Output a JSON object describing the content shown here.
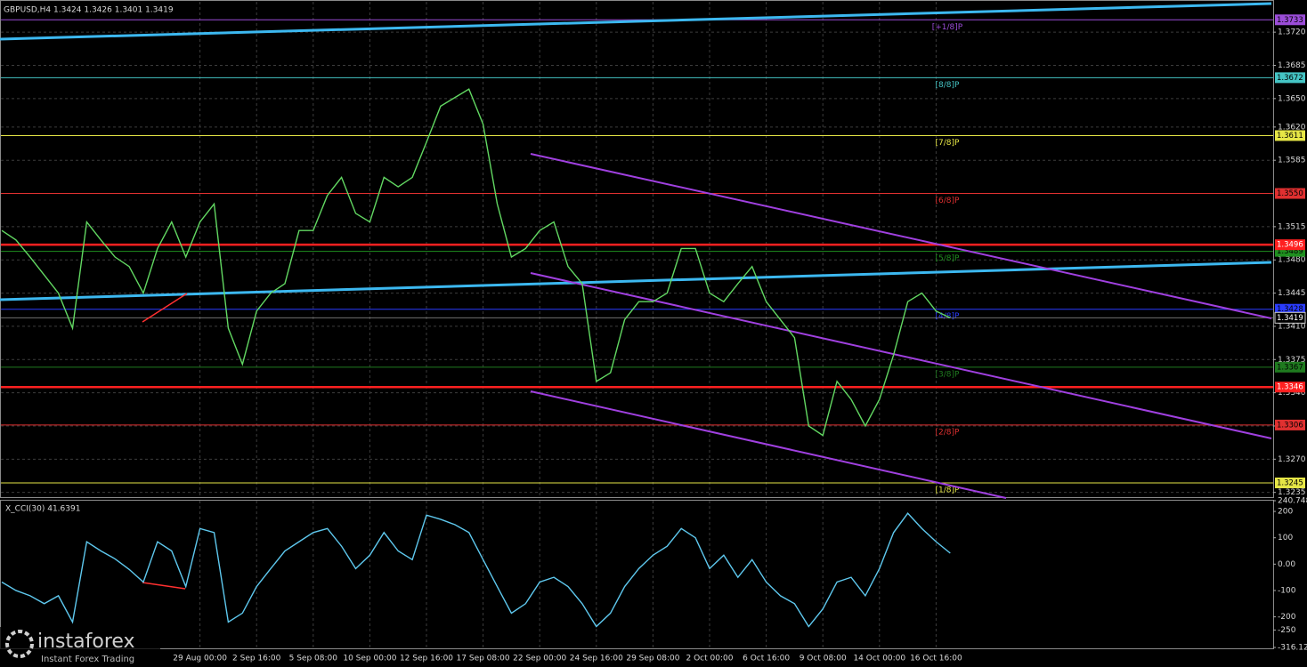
{
  "chart_data": [
    {
      "type": "line",
      "title": "GBPUSD,H4  1.3424 1.3426 1.3401 1.3419",
      "color": "#62d862",
      "values": [
        1.3511,
        1.3501,
        1.3483,
        1.3464,
        1.3445,
        1.3408,
        1.352,
        1.3501,
        1.3483,
        1.3473,
        1.3445,
        1.3492,
        1.352,
        1.3483,
        1.352,
        1.3539,
        1.3408,
        1.337,
        1.3426,
        1.3445,
        1.3455,
        1.3511,
        1.3511,
        1.3548,
        1.3567,
        1.3529,
        1.352,
        1.3567,
        1.3557,
        1.3567,
        1.3604,
        1.3642,
        1.3651,
        1.366,
        1.3623,
        1.3539,
        1.3483,
        1.3492,
        1.3511,
        1.352,
        1.3473,
        1.3455,
        1.3352,
        1.3361,
        1.3417,
        1.3436,
        1.3436,
        1.3445,
        1.3492,
        1.3492,
        1.3445,
        1.3436,
        1.3455,
        1.3473,
        1.3436,
        1.3417,
        1.3398,
        1.3305,
        1.3295,
        1.3352,
        1.3333,
        1.3305,
        1.3333,
        1.338,
        1.3436,
        1.3445,
        1.3426,
        1.3419
      ],
      "ylim": [
        1.323,
        1.3752
      ],
      "yticks": [
        {
          "value": 1.372,
          "label": "1.3720"
        },
        1.3685,
        {
          "value": 1.365,
          "label": "1.3650"
        },
        {
          "value": 1.362,
          "label": "1.3620"
        },
        1.3585,
        1.3515,
        {
          "value": 1.348,
          "label": "1.3480"
        },
        1.3445,
        {
          "value": 1.341,
          "label": "1.3410"
        },
        1.3375,
        {
          "value": 1.334,
          "label": "1.3340"
        },
        1.3305,
        {
          "value": 1.327,
          "label": "1.3270"
        },
        1.3235
      ],
      "grid": true,
      "levels": [
        {
          "label": "[+1/8]P",
          "value": 1.3733,
          "color": "#9b4dd8"
        },
        {
          "label": "[8/8]P",
          "value": 1.3672,
          "color": "#45c4c4"
        },
        {
          "label": "[7/8]P",
          "value": 1.3611,
          "color": "#e6e646"
        },
        {
          "label": "[6/8]P",
          "value": 1.355,
          "price_label": "1.3550",
          "color": "#e03030"
        },
        {
          "label": "[5/8]P",
          "value": 1.3489,
          "color": "#1f8f1f"
        },
        {
          "label": "[4/8]P",
          "value": 1.3428,
          "color": "#2a3cff"
        },
        {
          "label": "[3/8]P",
          "value": 1.3367,
          "color": "#1f7a1f"
        },
        {
          "label": "[2/8]P",
          "value": 1.3306,
          "color": "#e03030"
        },
        {
          "label": "[1/8]P",
          "value": 1.3245,
          "color": "#e6e646"
        }
      ],
      "key_levels": [
        1.3496,
        1.3346
      ],
      "key_color": "#ff2020",
      "current_price": 1.3419
    },
    {
      "type": "line",
      "title": "X_CCI(30) 41.6391",
      "color": "#5ec8ee",
      "categories": [
        null,
        null,
        null,
        null,
        null,
        null,
        null,
        null,
        null,
        null,
        null,
        null,
        null,
        null,
        "29 Aug 00:00",
        null,
        null,
        null,
        "2 Sep 16:00",
        null,
        null,
        null,
        "5 Sep 08:00",
        null,
        null,
        null,
        "10 Sep 00:00",
        null,
        null,
        null,
        "12 Sep 16:00",
        null,
        null,
        null,
        "17 Sep 08:00",
        null,
        null,
        null,
        "22 Sep 00:00",
        null,
        null,
        null,
        "24 Sep 16:00",
        null,
        null,
        null,
        "29 Sep 08:00",
        null,
        null,
        null,
        "2 Oct 00:00",
        null,
        null,
        null,
        "6 Oct 16:00",
        null,
        null,
        null,
        "9 Oct 08:00",
        null,
        null,
        null,
        "14 Oct 00:00",
        null,
        null,
        null,
        "16 Oct 16:00",
        null
      ],
      "values": [
        -68,
        -100,
        -120,
        -150,
        -120,
        -220,
        85,
        50,
        20,
        -20,
        -68,
        85,
        50,
        -85,
        135,
        120,
        -220,
        -186,
        -85,
        -17,
        50,
        85,
        120,
        135,
        68,
        -17,
        34,
        120,
        50,
        17,
        186,
        170,
        150,
        120,
        17,
        -85,
        -186,
        -150,
        -68,
        -50,
        -85,
        -150,
        -237,
        -186,
        -85,
        -17,
        34,
        68,
        135,
        100,
        -17,
        34,
        -50,
        17,
        -68,
        -120,
        -150,
        -237,
        -170,
        -68,
        -50,
        -120,
        -17,
        120,
        193,
        135,
        85,
        41.6391
      ],
      "ylim": [
        -316.1294,
        240.7484
      ],
      "yticks": [
        240.7484,
        200,
        100,
        {
          "value": 0,
          "label": "0.00"
        },
        -100,
        -200,
        -250,
        -316.1294
      ]
    }
  ],
  "watermark": {
    "brand": "instaforex",
    "tagline": "Instant Forex Trading"
  }
}
